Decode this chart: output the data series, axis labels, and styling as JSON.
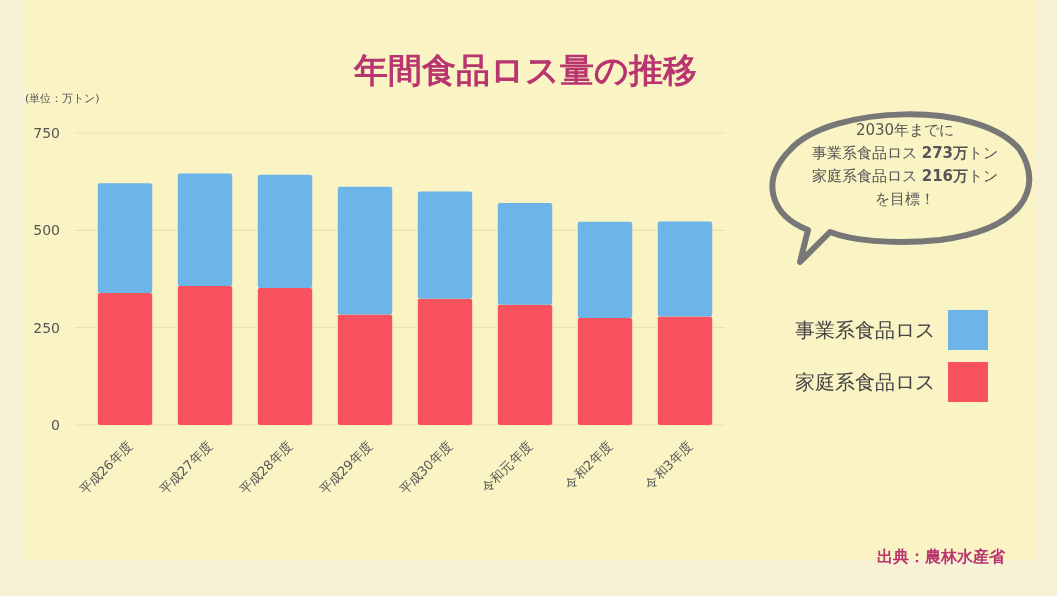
{
  "chart_data": {
    "type": "bar",
    "title": "年間食品ロス量の推移",
    "ylabel": "(単位：万トン)",
    "categories": [
      "平成26年度",
      "平成27年度",
      "平成28年度",
      "平成29年度",
      "平成30年度",
      "令和元年度",
      "令和2年度",
      "令和3年度"
    ],
    "stacked": true,
    "series": [
      {
        "name": "家庭系食品ロス",
        "color": "#f7525e",
        "values": [
          339,
          357,
          352,
          284,
          324,
          309,
          275,
          279
        ]
      },
      {
        "name": "事業系食品ロス",
        "color": "#6db5e9",
        "values": [
          282,
          289,
          291,
          328,
          276,
          261,
          247,
          244
        ]
      }
    ],
    "ylim": [
      0,
      750
    ],
    "yticks": [
      0,
      250,
      500,
      750
    ],
    "grid": "y",
    "legend": "right",
    "annotations": [
      "2030年までに",
      "事業系食品ロス **273万**トン",
      "家庭系食品ロス **216万**トン",
      "を目標！",
      "出典：農林水産省"
    ]
  }
}
